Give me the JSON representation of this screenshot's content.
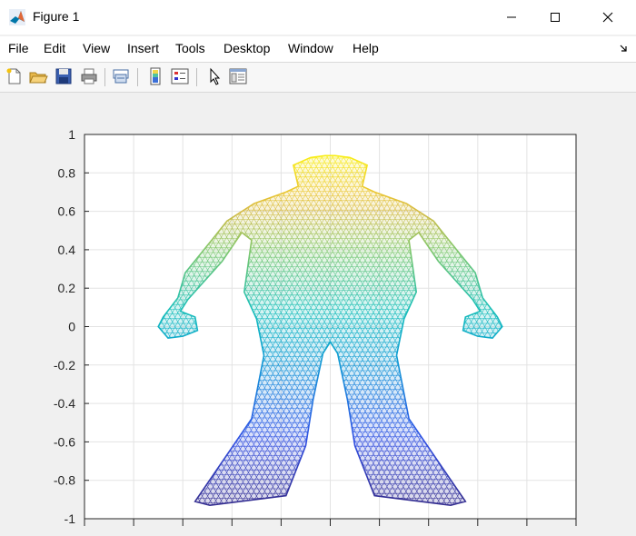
{
  "window": {
    "title": "Figure 1"
  },
  "menu": {
    "items": [
      "File",
      "Edit",
      "View",
      "Insert",
      "Tools",
      "Desktop",
      "Window",
      "Help"
    ]
  },
  "toolbar": {
    "tools": [
      "new-figure-icon",
      "open-file-icon",
      "save-icon",
      "print-icon",
      "link-plot-icon",
      "insert-colorbar-icon",
      "insert-legend-icon",
      "edit-plot-pointer-icon",
      "property-inspector-icon"
    ]
  },
  "chart_data": {
    "type": "scatter",
    "description_kind": "trimesh wireframe of a human figure colored by y (parula colormap)",
    "colormap": "parula",
    "title": "",
    "xlabel": "",
    "ylabel": "",
    "ylim": [
      -1,
      1
    ],
    "y_ticks": [
      "1",
      "0.8",
      "0.6",
      "0.4",
      "0.2",
      "0",
      "-0.2",
      "-0.4",
      "-0.6",
      "-0.8",
      "-1"
    ],
    "x_tick_count": 11,
    "x_tick_labels_visible": false,
    "grid": true,
    "outline": {
      "x": [
        -0.02,
        -0.08,
        -0.15,
        -0.13,
        -0.18,
        -0.31,
        -0.42,
        -0.47,
        -0.59,
        -0.62,
        -0.68,
        -0.7,
        -0.66,
        -0.6,
        -0.54,
        -0.55,
        -0.61,
        -0.58,
        -0.44,
        -0.36,
        -0.32,
        -0.35,
        -0.3,
        -0.27,
        -0.32,
        -0.55,
        -0.49,
        -0.18,
        -0.1,
        -0.07,
        -0.03,
        0.0,
        0.03,
        0.07,
        0.1,
        0.18,
        0.49,
        0.55,
        0.32,
        0.27,
        0.3,
        0.35,
        0.32,
        0.36,
        0.44,
        0.58,
        0.61,
        0.55,
        0.54,
        0.6,
        0.66,
        0.7,
        0.68,
        0.62,
        0.59,
        0.47,
        0.42,
        0.31,
        0.18,
        0.13,
        0.15,
        0.08,
        0.02
      ],
      "y": [
        0.89,
        0.88,
        0.84,
        0.73,
        0.7,
        0.64,
        0.55,
        0.47,
        0.28,
        0.15,
        0.05,
        -0.0,
        -0.06,
        -0.05,
        -0.02,
        0.05,
        0.08,
        0.14,
        0.34,
        0.49,
        0.45,
        0.18,
        0.04,
        -0.15,
        -0.48,
        -0.91,
        -0.93,
        -0.88,
        -0.62,
        -0.38,
        -0.14,
        -0.08,
        -0.14,
        -0.38,
        -0.62,
        -0.88,
        -0.93,
        -0.91,
        -0.48,
        -0.15,
        0.04,
        0.18,
        0.45,
        0.49,
        0.34,
        0.14,
        0.08,
        0.05,
        -0.02,
        -0.05,
        -0.06,
        -0.0,
        0.05,
        0.15,
        0.28,
        0.47,
        0.55,
        0.64,
        0.7,
        0.73,
        0.84,
        0.88,
        0.89
      ]
    }
  }
}
